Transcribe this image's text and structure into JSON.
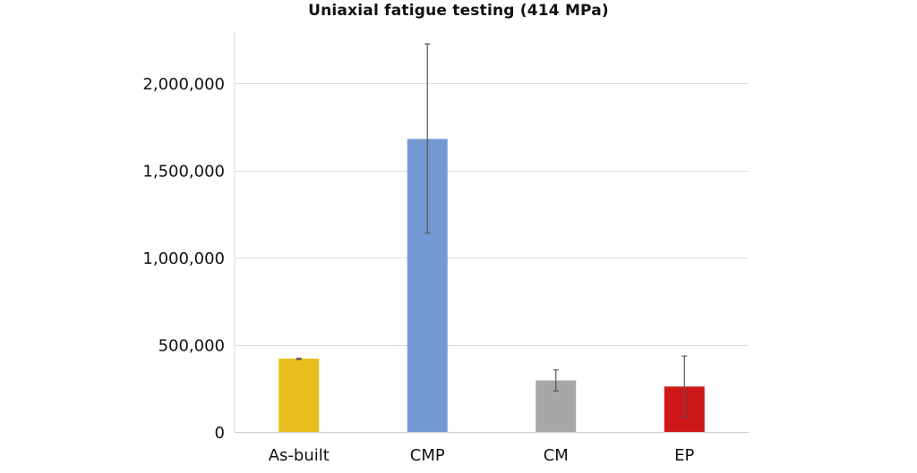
{
  "chart_data": {
    "type": "bar",
    "title": "Uniaxial fatigue testing (414 MPa)",
    "xlabel": "",
    "ylabel": "",
    "categories": [
      "As-built",
      "CMP",
      "CM",
      "EP"
    ],
    "values": [
      420000,
      1680000,
      295000,
      260000
    ],
    "error_bars": [
      {
        "low": 415000,
        "high": 422000
      },
      {
        "low": 1140000,
        "high": 2225000
      },
      {
        "low": 235000,
        "high": 355000
      },
      {
        "low": 85000,
        "high": 435000
      }
    ],
    "colors": [
      "#E9BE1C",
      "#7399D4",
      "#A7A7A7",
      "#CE1719"
    ],
    "ylim": [
      0,
      2250000
    ],
    "yticks": [
      0,
      500000,
      1000000,
      1500000,
      2000000
    ],
    "ytick_labels": [
      "0",
      "500,000",
      "1,000,000",
      "1,500,000",
      "2,000,000"
    ],
    "grid": true,
    "legend": "none"
  }
}
